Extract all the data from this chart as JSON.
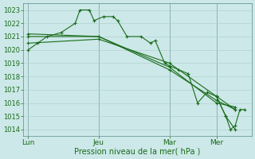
{
  "background_color": "#cce8e8",
  "grid_color": "#aacccc",
  "line_color": "#1a6b1a",
  "marker": "+",
  "marker_size": 3,
  "marker_lw": 0.8,
  "line_width": 0.8,
  "xlabel": "Pression niveau de la mer( hPa )",
  "xlabel_fontsize": 7,
  "xlabel_color": "#1a6b1a",
  "ylim": [
    1013.5,
    1023.5
  ],
  "yticks": [
    1014,
    1015,
    1016,
    1017,
    1018,
    1019,
    1020,
    1021,
    1022,
    1023
  ],
  "ytick_fontsize": 6,
  "xtick_fontsize": 6.5,
  "xtick_labels": [
    "Lun",
    "Jeu",
    "Mar",
    "Mer"
  ],
  "xtick_positions": [
    0,
    30,
    60,
    80
  ],
  "xlim": [
    -2,
    95
  ],
  "vline_positions": [
    0,
    30,
    60,
    80
  ],
  "series1_x": [
    0,
    4,
    8,
    14,
    20,
    22,
    26,
    28,
    32,
    36,
    38,
    42,
    48,
    52,
    54,
    58,
    60,
    64,
    68,
    72,
    76,
    80,
    84,
    88
  ],
  "series1_y": [
    1020.0,
    1020.5,
    1021.0,
    1021.3,
    1022.0,
    1023.0,
    1023.0,
    1022.2,
    1022.5,
    1022.5,
    1022.2,
    1021.0,
    1021.0,
    1020.5,
    1020.7,
    1019.0,
    1018.8,
    1018.5,
    1018.2,
    1016.0,
    1016.8,
    1016.5,
    1015.0,
    1014.0
  ],
  "series2_x": [
    0,
    30,
    60,
    80,
    88
  ],
  "series2_y": [
    1021.0,
    1021.0,
    1018.5,
    1016.2,
    1015.5
  ],
  "series3_x": [
    0,
    30,
    60,
    80,
    88
  ],
  "series3_y": [
    1021.2,
    1021.0,
    1018.7,
    1016.0,
    1015.7
  ],
  "series4_x": [
    0,
    30,
    60,
    80,
    88
  ],
  "series4_y": [
    1020.5,
    1020.8,
    1019.0,
    1016.5,
    1015.5
  ],
  "series5_x": [
    80,
    84,
    86,
    88,
    90,
    92
  ],
  "series5_y": [
    1016.5,
    1015.0,
    1014.0,
    1014.3,
    1015.5,
    1015.5
  ]
}
